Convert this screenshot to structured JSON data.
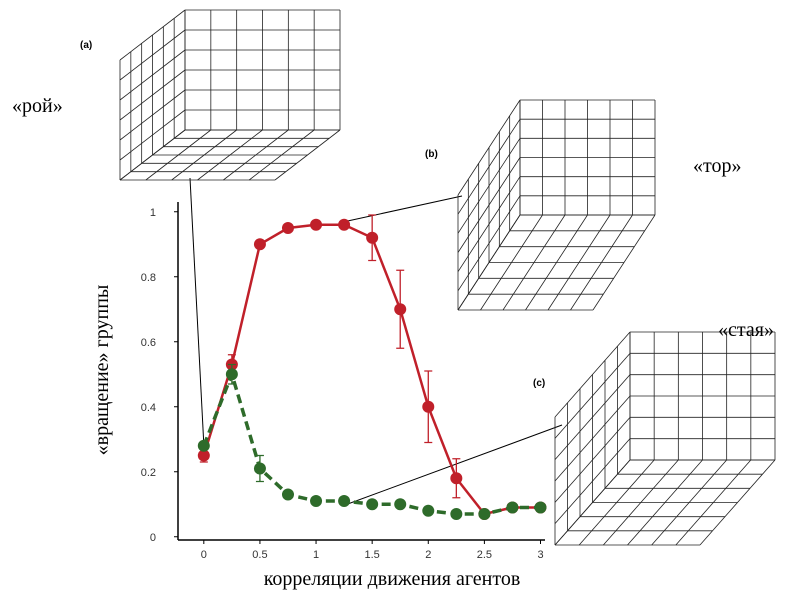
{
  "chart_data": {
    "type": "line",
    "xlabel": "корреляции движения агентов",
    "ylabel": "«вращение» группы",
    "annotations": [
      "(a)",
      "«рой»",
      "(b)",
      "«тор»",
      "«стая»",
      "(c)"
    ],
    "xlim": [
      -0.23,
      3.04
    ],
    "xticks": [
      0,
      0.5,
      1,
      1.5,
      2,
      2.5,
      3
    ],
    "ylim": [
      -0.01,
      1.03
    ],
    "yticks": [
      0,
      0.2,
      0.4,
      0.6,
      0.8,
      1
    ],
    "x": [
      0,
      0.25,
      0.5,
      0.75,
      1,
      1.25,
      1.5,
      1.75,
      2,
      2.25,
      2.5,
      2.75,
      3
    ],
    "series": [
      {
        "color": "#c0202a",
        "dash": false,
        "values": [
          0.25,
          0.53,
          0.9,
          0.95,
          0.96,
          0.96,
          0.92,
          0.7,
          0.4,
          0.18,
          0.07,
          0.09,
          0.09
        ],
        "errors": [
          0.02,
          0.03,
          null,
          null,
          null,
          null,
          0.07,
          0.12,
          0.11,
          0.06,
          null,
          null,
          null
        ]
      },
      {
        "color": "#2e6b2a",
        "dash": true,
        "values": [
          0.28,
          0.5,
          0.21,
          0.13,
          0.11,
          0.11,
          0.1,
          0.1,
          0.08,
          0.07,
          0.07,
          0.09,
          0.09
        ],
        "errors": [
          null,
          0.03,
          0.04,
          null,
          null,
          null,
          null,
          null,
          null,
          null,
          null,
          null,
          null
        ]
      }
    ]
  }
}
